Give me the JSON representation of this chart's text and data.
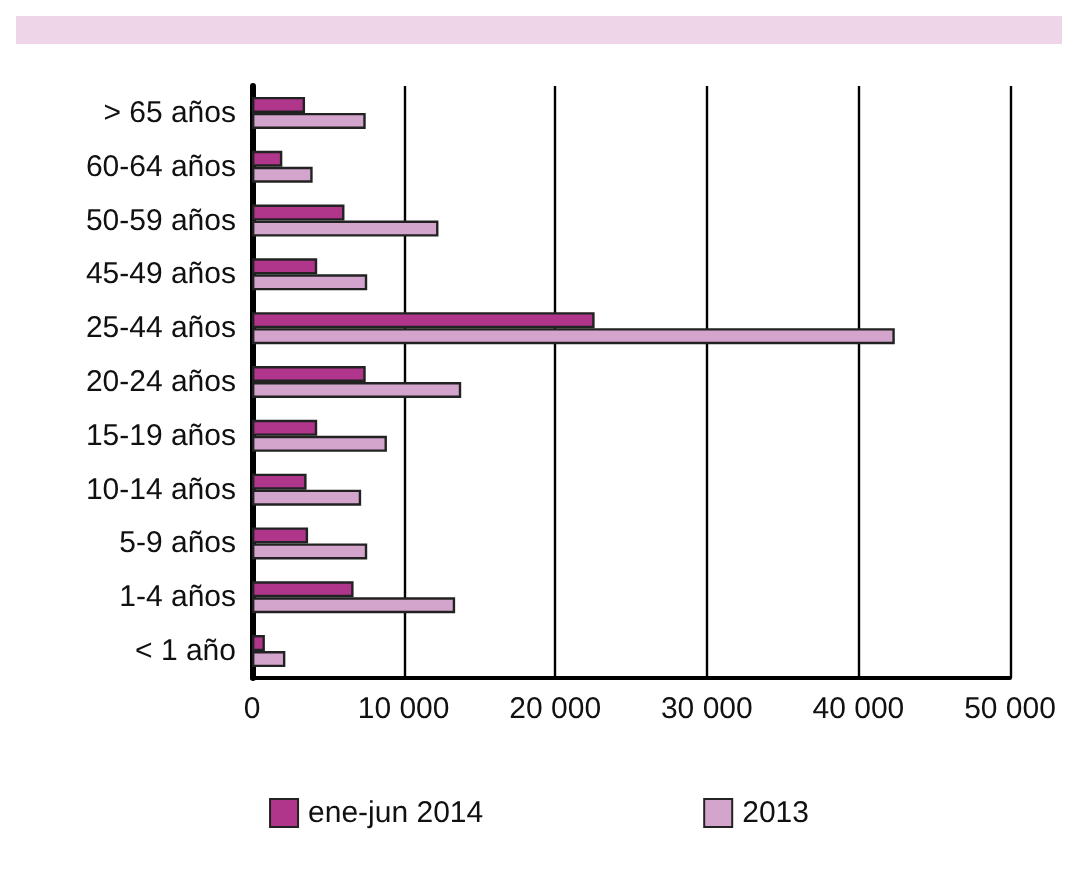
{
  "chart_data": {
    "type": "bar",
    "orientation": "horizontal",
    "categories": [
      "> 65 años",
      "60-64 años",
      "50-59 años",
      "45-49 años",
      "25-44 años",
      "20-24 años",
      "15-19 años",
      "10-14 años",
      "5-9 años",
      "1-4 años",
      "< 1 año"
    ],
    "series": [
      {
        "name": "ene-jun 2014",
        "color": "#b0368c",
        "values": [
          3500,
          2000,
          6100,
          4300,
          22600,
          7500,
          4300,
          3600,
          3700,
          6700,
          850
        ]
      },
      {
        "name": "2013",
        "color": "#d4a5cc",
        "values": [
          7500,
          4000,
          12300,
          7600,
          42400,
          13800,
          8900,
          7200,
          7600,
          13400,
          2200
        ]
      }
    ],
    "xlim": [
      0,
      50000
    ],
    "xticks": [
      0,
      {
        "value": 10000,
        "label": "10 000"
      },
      {
        "value": 20000,
        "label": "20 000"
      },
      {
        "value": 30000,
        "label": "30 000"
      },
      {
        "value": 40000,
        "label": "40 000"
      },
      {
        "value": 50000,
        "label": "50 000"
      }
    ],
    "grid": "x",
    "legend": "bottom"
  }
}
